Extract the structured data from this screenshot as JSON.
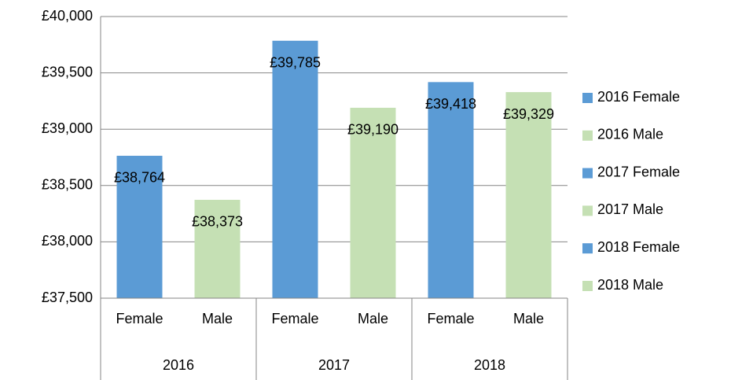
{
  "chart_data": {
    "type": "bar",
    "categories": [
      "Female",
      "Male",
      "Female",
      "Male",
      "Female",
      "Male"
    ],
    "groups": [
      "2016",
      "2017",
      "2018"
    ],
    "series": [
      {
        "name": "2016 Female",
        "color": "#5b9bd5",
        "values": [
          38764,
          null,
          null,
          null,
          null,
          null
        ],
        "value_labels": [
          "£38,764",
          null,
          null,
          null,
          null,
          null
        ]
      },
      {
        "name": "2016 Male",
        "color": "#c5e0b4",
        "values": [
          null,
          38373,
          null,
          null,
          null,
          null
        ],
        "value_labels": [
          null,
          "£38,373",
          null,
          null,
          null,
          null
        ]
      },
      {
        "name": "2017 Female",
        "color": "#5b9bd5",
        "values": [
          null,
          null,
          39785,
          null,
          null,
          null
        ],
        "value_labels": [
          null,
          null,
          "£39,785",
          null,
          null,
          null
        ]
      },
      {
        "name": "2017 Male",
        "color": "#c5e0b4",
        "values": [
          null,
          null,
          null,
          39190,
          null,
          null
        ],
        "value_labels": [
          null,
          null,
          null,
          "£39,190",
          null,
          null
        ]
      },
      {
        "name": "2018 Female",
        "color": "#5b9bd5",
        "values": [
          null,
          null,
          null,
          null,
          39418,
          null
        ],
        "value_labels": [
          null,
          null,
          null,
          null,
          "£39,418",
          null
        ]
      },
      {
        "name": "2018 Male",
        "color": "#c5e0b4",
        "values": [
          null,
          null,
          null,
          null,
          null,
          39329
        ],
        "value_labels": [
          null,
          null,
          null,
          null,
          null,
          "£39,329"
        ]
      }
    ],
    "ylim": [
      37500,
      40000
    ],
    "yticks": [
      {
        "value": 37500,
        "label": "£37,500"
      },
      {
        "value": 38000,
        "label": "£38,000"
      },
      {
        "value": 38500,
        "label": "£38,500"
      },
      {
        "value": 39000,
        "label": "£39,000"
      },
      {
        "value": 39500,
        "label": "£39,500"
      },
      {
        "value": 40000,
        "label": "£40,000"
      }
    ],
    "grid": true,
    "legend": "right"
  }
}
